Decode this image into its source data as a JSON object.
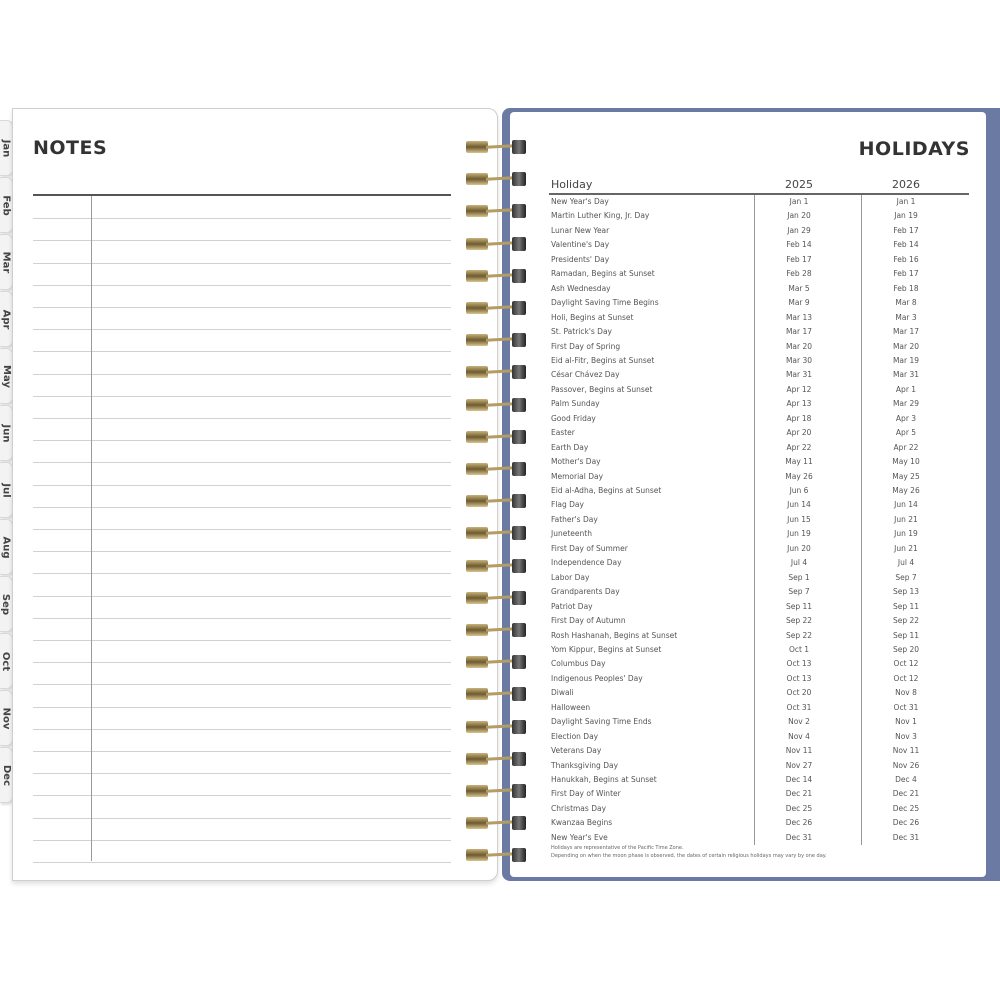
{
  "tabs": [
    "Jan",
    "Feb",
    "Mar",
    "Apr",
    "May",
    "Jun",
    "Jul",
    "Aug",
    "Sep",
    "Oct",
    "Nov",
    "Dec"
  ],
  "notes": {
    "title": "NOTES"
  },
  "holidays": {
    "title": "HOLIDAYS",
    "columns": [
      "Holiday",
      "2025",
      "2026"
    ],
    "rows": [
      [
        "New Year's Day",
        "Jan 1",
        "Jan 1"
      ],
      [
        "Martin Luther King, Jr. Day",
        "Jan 20",
        "Jan 19"
      ],
      [
        "Lunar New Year",
        "Jan 29",
        "Feb 17"
      ],
      [
        "Valentine's Day",
        "Feb 14",
        "Feb 14"
      ],
      [
        "Presidents' Day",
        "Feb 17",
        "Feb 16"
      ],
      [
        "Ramadan, Begins at Sunset",
        "Feb 28",
        "Feb 17"
      ],
      [
        "Ash Wednesday",
        "Mar 5",
        "Feb 18"
      ],
      [
        "Daylight Saving Time Begins",
        "Mar 9",
        "Mar 8"
      ],
      [
        "Holi, Begins at Sunset",
        "Mar 13",
        "Mar 3"
      ],
      [
        "St. Patrick's Day",
        "Mar 17",
        "Mar 17"
      ],
      [
        "First Day of Spring",
        "Mar 20",
        "Mar 20"
      ],
      [
        "Eid al-Fitr, Begins at Sunset",
        "Mar 30",
        "Mar 19"
      ],
      [
        "César Chávez Day",
        "Mar 31",
        "Mar 31"
      ],
      [
        "Passover, Begins at Sunset",
        "Apr 12",
        "Apr 1"
      ],
      [
        "Palm Sunday",
        "Apr 13",
        "Mar 29"
      ],
      [
        "Good Friday",
        "Apr 18",
        "Apr 3"
      ],
      [
        "Easter",
        "Apr 20",
        "Apr 5"
      ],
      [
        "Earth Day",
        "Apr 22",
        "Apr 22"
      ],
      [
        "Mother's Day",
        "May 11",
        "May 10"
      ],
      [
        "Memorial Day",
        "May 26",
        "May 25"
      ],
      [
        "Eid al-Adha, Begins at Sunset",
        "Jun 6",
        "May 26"
      ],
      [
        "Flag Day",
        "Jun 14",
        "Jun 14"
      ],
      [
        "Father's Day",
        "Jun 15",
        "Jun 21"
      ],
      [
        "Juneteenth",
        "Jun 19",
        "Jun 19"
      ],
      [
        "First Day of Summer",
        "Jun 20",
        "Jun 21"
      ],
      [
        "Independence Day",
        "Jul 4",
        "Jul 4"
      ],
      [
        "Labor Day",
        "Sep 1",
        "Sep 7"
      ],
      [
        "Grandparents Day",
        "Sep 7",
        "Sep 13"
      ],
      [
        "Patriot Day",
        "Sep 11",
        "Sep 11"
      ],
      [
        "First Day of Autumn",
        "Sep 22",
        "Sep 22"
      ],
      [
        "Rosh Hashanah, Begins at Sunset",
        "Sep 22",
        "Sep 11"
      ],
      [
        "Yom Kippur, Begins at Sunset",
        "Oct 1",
        "Sep 20"
      ],
      [
        "Columbus Day",
        "Oct 13",
        "Oct 12"
      ],
      [
        "Indigenous Peoples' Day",
        "Oct 13",
        "Oct 12"
      ],
      [
        "Diwali",
        "Oct 20",
        "Nov 8"
      ],
      [
        "Halloween",
        "Oct 31",
        "Oct 31"
      ],
      [
        "Daylight Saving Time Ends",
        "Nov 2",
        "Nov 1"
      ],
      [
        "Election Day",
        "Nov 4",
        "Nov 3"
      ],
      [
        "Veterans Day",
        "Nov 11",
        "Nov 11"
      ],
      [
        "Thanksgiving Day",
        "Nov 27",
        "Nov 26"
      ],
      [
        "Hanukkah, Begins at Sunset",
        "Dec 14",
        "Dec 4"
      ],
      [
        "First Day of Winter",
        "Dec 21",
        "Dec 21"
      ],
      [
        "Christmas Day",
        "Dec 25",
        "Dec 25"
      ],
      [
        "Kwanzaa Begins",
        "Dec 26",
        "Dec 26"
      ],
      [
        "New Year's Eve",
        "Dec 31",
        "Dec 31"
      ]
    ],
    "footnotes": [
      "Holidays are representative of the Pacific Time Zone.",
      "Depending on when the moon phase is observed, the dates of certain religious holidays may vary by one day."
    ]
  },
  "colors": {
    "cover": "#6b7aa3",
    "ring_gold": "#b59d62"
  }
}
